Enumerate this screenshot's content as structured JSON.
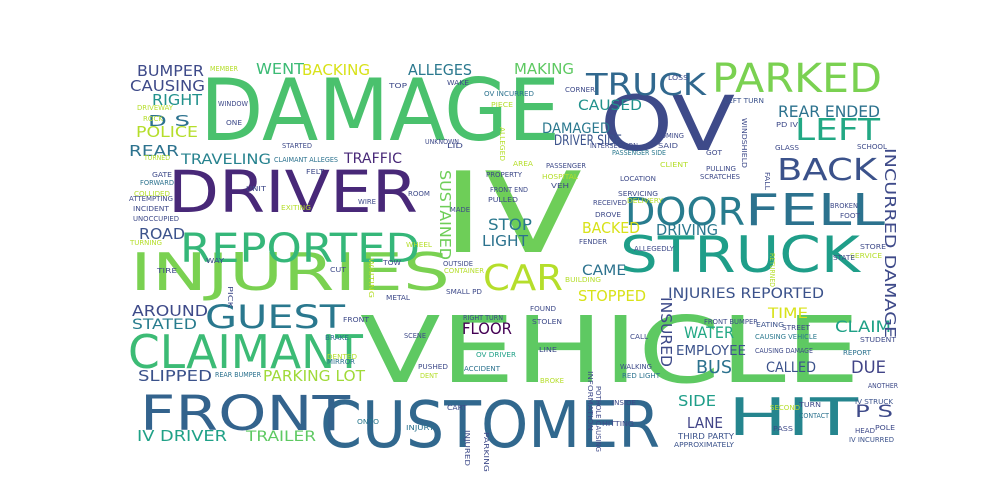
{
  "colors": {
    "background": "#ffffff",
    "palette": [
      "#440154",
      "#46327e",
      "#365c8d",
      "#277f8e",
      "#1fa187",
      "#4ac16d",
      "#a0da39",
      "#fde725"
    ]
  },
  "words": [
    {
      "text": "DAMAGE",
      "color": "#4ac16d",
      "rot": 0
    },
    {
      "text": "VEHICLE",
      "color": "#5ec962",
      "rot": 0
    },
    {
      "text": "IV",
      "color": "#6ece58",
      "rot": 0
    },
    {
      "text": "OV",
      "color": "#3e4a89",
      "rot": 0
    },
    {
      "text": "CUSTOMER",
      "color": "#31688e",
      "rot": 0
    },
    {
      "text": "DRIVER",
      "color": "#482878",
      "rot": 0
    },
    {
      "text": "INJURIES",
      "color": "#7ad151",
      "rot": 0
    },
    {
      "text": "STRUCK",
      "color": "#1f9e89",
      "rot": 0
    },
    {
      "text": "FRONT",
      "color": "#33638d",
      "rot": 0
    },
    {
      "text": "HIT",
      "color": "#25858e",
      "rot": 0
    },
    {
      "text": "CLAIMANT",
      "color": "#3cbb75",
      "rot": 0
    },
    {
      "text": "FELL",
      "color": "#2c728e",
      "rot": 0
    },
    {
      "text": "PARKED",
      "color": "#7ad151",
      "rot": 0
    },
    {
      "text": "REPORTED",
      "color": "#35b779",
      "rot": 0
    },
    {
      "text": "DOOR",
      "color": "#287c8e",
      "rot": 0
    },
    {
      "text": "CAR",
      "color": "#b5de2b",
      "rot": 0
    },
    {
      "text": "BACK",
      "color": "#3b528b",
      "rot": 0
    },
    {
      "text": "LEFT",
      "color": "#22a884",
      "rot": 0
    },
    {
      "text": "TRUCK",
      "color": "#31688e",
      "rot": 0
    },
    {
      "text": "GUEST",
      "color": "#2a788e",
      "rot": 0
    },
    {
      "text": "INJURIES REPORTED",
      "color": "#3b528b",
      "rot": 0
    },
    {
      "text": "REAR ENDED",
      "color": "#2c728e",
      "rot": 0
    },
    {
      "text": "PARKING LOT",
      "color": "#a0da39",
      "rot": 0
    },
    {
      "text": "FLOOR",
      "color": "#440154",
      "rot": 0
    },
    {
      "text": "WATER",
      "color": "#22a884",
      "rot": 0
    },
    {
      "text": "CLAIM",
      "color": "#1fa187",
      "rot": 0
    },
    {
      "text": "BUS",
      "color": "#2c728e",
      "rot": 0
    },
    {
      "text": "DUE",
      "color": "#414487",
      "rot": 0
    },
    {
      "text": "LANE",
      "color": "#414487",
      "rot": 0
    },
    {
      "text": "SIDE",
      "color": "#1f9e89",
      "rot": 0
    },
    {
      "text": "P S",
      "color": "#3e4a89",
      "rot": 0
    },
    {
      "text": "IV DRIVER",
      "color": "#1fa187",
      "rot": 0
    },
    {
      "text": "TRAILER",
      "color": "#5ec962",
      "rot": 0
    },
    {
      "text": "SLIPPED",
      "color": "#3b528b",
      "rot": 0
    },
    {
      "text": "STATED",
      "color": "#287c8e",
      "rot": 0
    },
    {
      "text": "AROUND",
      "color": "#3e4a89",
      "rot": 0
    },
    {
      "text": "ROAD",
      "color": "#3b528b",
      "rot": 0
    },
    {
      "text": "TRAVELING",
      "color": "#26828e",
      "rot": 0
    },
    {
      "text": "REAR",
      "color": "#2c728e",
      "rot": 0
    },
    {
      "text": "POLICE",
      "color": "#b5de2b",
      "rot": 0
    },
    {
      "text": "D S",
      "color": "#2c728e",
      "rot": 0
    },
    {
      "text": "RIGHT",
      "color": "#21918c",
      "rot": 0
    },
    {
      "text": "CAUSING",
      "color": "#3e4a89",
      "rot": 0
    },
    {
      "text": "BUMPER",
      "color": "#3e4a89",
      "rot": 0
    },
    {
      "text": "WENT",
      "color": "#3cbb75",
      "rot": 0
    },
    {
      "text": "BACKING",
      "color": "#d8e219",
      "rot": 0
    },
    {
      "text": "ALLEGES",
      "color": "#2a788e",
      "rot": 0
    },
    {
      "text": "MAKING",
      "color": "#5ec962",
      "rot": 0
    },
    {
      "text": "CAUSED",
      "color": "#21918c",
      "rot": 0
    },
    {
      "text": "DAMAGED",
      "color": "#2a788e",
      "rot": 0
    },
    {
      "text": "DRIVER SIDE",
      "color": "#3b528b",
      "rot": 0
    },
    {
      "text": "TRAFFIC",
      "color": "#482878",
      "rot": 0
    },
    {
      "text": "STOP",
      "color": "#2a788e",
      "rot": 0
    },
    {
      "text": "LIGHT",
      "color": "#2c728e",
      "rot": 0
    },
    {
      "text": "BACKED",
      "color": "#d8e219",
      "rot": 0
    },
    {
      "text": "DRIVING",
      "color": "#2a788e",
      "rot": 0
    },
    {
      "text": "CAME",
      "color": "#2c728e",
      "rot": 0
    },
    {
      "text": "STOPPED",
      "color": "#d8e219",
      "rot": 0
    },
    {
      "text": "TIME",
      "color": "#d8e219",
      "rot": 0
    },
    {
      "text": "INSURED",
      "color": "#3e4a89",
      "rot": 90
    },
    {
      "text": "EMPLOYEE",
      "color": "#3b528b",
      "rot": 0
    },
    {
      "text": "CALLED",
      "color": "#3b528b",
      "rot": 0
    },
    {
      "text": "INCURRED DAMAGE",
      "color": "#3e4a89",
      "rot": 90
    },
    {
      "text": "SUSTAINED",
      "color": "#6ece58",
      "rot": 90
    },
    {
      "text": "THIRD PARTY",
      "color": "#3b528b",
      "rot": 0
    },
    {
      "text": "APPROXIMATELY",
      "color": "#3b528b",
      "rot": 0
    },
    {
      "text": "RIGHT TURN",
      "color": "#3e4a89",
      "rot": 0
    },
    {
      "text": "STOLEN",
      "color": "#3e4a89",
      "rot": 0
    },
    {
      "text": "FOUND",
      "color": "#3e4a89",
      "rot": 0
    },
    {
      "text": "SMALL PD",
      "color": "#3e4a89",
      "rot": 0
    },
    {
      "text": "FRONT END",
      "color": "#3e4a89",
      "rot": 0
    },
    {
      "text": "PULLED",
      "color": "#3e4a89",
      "rot": 0
    },
    {
      "text": "IV INCURRED",
      "color": "#3b528b",
      "rot": 0
    },
    {
      "text": "IV STRUCK",
      "color": "#3b528b",
      "rot": 0
    },
    {
      "text": "CAUSING VEHICLE",
      "color": "#2a788e",
      "rot": 0
    },
    {
      "text": "CAUSING DAMAGE",
      "color": "#3e4a89",
      "rot": 0
    },
    {
      "text": "FRONT BUMPER",
      "color": "#3e4a89",
      "rot": 0
    },
    {
      "text": "OV DRIVER",
      "color": "#1fa187",
      "rot": 0
    },
    {
      "text": "REAR BUMPER",
      "color": "#2c728e",
      "rot": 0
    },
    {
      "text": "CLAIMANT ALLEGES",
      "color": "#2c728e",
      "rot": 0
    },
    {
      "text": "OV INCURRED",
      "color": "#2c728e",
      "rot": 0
    },
    {
      "text": "PASSENGER SIDE",
      "color": "#2a788e",
      "rot": 0
    },
    {
      "text": "LEFT TURN",
      "color": "#3b528b",
      "rot": 0
    },
    {
      "text": "RED LIGHT",
      "color": "#2c728e",
      "rot": 0
    },
    {
      "text": "ACCIDENT",
      "color": "#2c728e",
      "rot": 0
    },
    {
      "text": "PUSHED",
      "color": "#3e4a89",
      "rot": 0
    },
    {
      "text": "INJURY",
      "color": "#2c728e",
      "rot": 0
    },
    {
      "text": "ONTO",
      "color": "#2a788e",
      "rot": 0
    },
    {
      "text": "CART",
      "color": "#3e4a89",
      "rot": 0
    },
    {
      "text": "SCENE",
      "color": "#3e4a89",
      "rot": 0
    },
    {
      "text": "BRAKE",
      "color": "#2c728e",
      "rot": 0
    },
    {
      "text": "MIRROR",
      "color": "#2c728e",
      "rot": 0
    },
    {
      "text": "STREET",
      "color": "#3e4a89",
      "rot": 0
    },
    {
      "text": "EATING",
      "color": "#3b528b",
      "rot": 0
    },
    {
      "text": "STUDENT",
      "color": "#3e4a89",
      "rot": 0
    },
    {
      "text": "REPORT",
      "color": "#2c728e",
      "rot": 0
    },
    {
      "text": "ANOTHER",
      "color": "#3e4a89",
      "rot": 0
    },
    {
      "text": "POLE",
      "color": "#3e4a89",
      "rot": 0
    },
    {
      "text": "HEAD",
      "color": "#3e4a89",
      "rot": 0
    },
    {
      "text": "CONTACT",
      "color": "#2c728e",
      "rot": 0
    },
    {
      "text": "TURN",
      "color": "#3e4a89",
      "rot": 0
    },
    {
      "text": "PASS",
      "color": "#3e4a89",
      "rot": 0
    },
    {
      "text": "STORE",
      "color": "#3e4a89",
      "rot": 0
    },
    {
      "text": "SERVICE",
      "color": "#b5de2b",
      "rot": 0
    },
    {
      "text": "STATE",
      "color": "#3e4a89",
      "rot": 0
    },
    {
      "text": "FOOT",
      "color": "#3e4a89",
      "rot": 0
    },
    {
      "text": "BROKEN",
      "color": "#3e4a89",
      "rot": 0
    },
    {
      "text": "TIRE",
      "color": "#3e4a89",
      "rot": 0
    },
    {
      "text": "TURNING",
      "color": "#b5de2b",
      "rot": 0
    },
    {
      "text": "INCIDENT",
      "color": "#3e4a89",
      "rot": 0
    },
    {
      "text": "ATTEMPTING",
      "color": "#3e4a89",
      "rot": 0
    },
    {
      "text": "COLLIDED",
      "color": "#b5de2b",
      "rot": 0
    },
    {
      "text": "FORWARD",
      "color": "#2c728e",
      "rot": 0
    },
    {
      "text": "GATE",
      "color": "#3e4a89",
      "rot": 0
    },
    {
      "text": "TURNED",
      "color": "#b5de2b",
      "rot": 0
    },
    {
      "text": "ROCK",
      "color": "#b5de2b",
      "rot": 0
    },
    {
      "text": "DRIVEWAY",
      "color": "#b5de2b",
      "rot": 0
    },
    {
      "text": "MEMBER",
      "color": "#b5de2b",
      "rot": 0
    },
    {
      "text": "WINDOW",
      "color": "#3e4a89",
      "rot": 0
    },
    {
      "text": "LOSS",
      "color": "#3e4a89",
      "rot": 0
    },
    {
      "text": "CORNER",
      "color": "#3e4a89",
      "rot": 0
    },
    {
      "text": "WAKE",
      "color": "#3e4a89",
      "rot": 0
    },
    {
      "text": "TOP",
      "color": "#3e4a89",
      "rot": 0
    },
    {
      "text": "PIECE",
      "color": "#b5de2b",
      "rot": 0
    },
    {
      "text": "COMING",
      "color": "#3e4a89",
      "rot": 0
    },
    {
      "text": "SAID",
      "color": "#3e4a89",
      "rot": 0
    },
    {
      "text": "CLIENT",
      "color": "#b5de2b",
      "rot": 0
    },
    {
      "text": "GLASS",
      "color": "#3e4a89",
      "rot": 0
    },
    {
      "text": "SCHOOL",
      "color": "#3e4a89",
      "rot": 0
    },
    {
      "text": "GOT",
      "color": "#3e4a89",
      "rot": 0
    },
    {
      "text": "PULLING",
      "color": "#3e4a89",
      "rot": 0
    },
    {
      "text": "SCRATCHES",
      "color": "#3e4a89",
      "rot": 0
    },
    {
      "text": "LOCATION",
      "color": "#3e4a89",
      "rot": 0
    },
    {
      "text": "SERVICING",
      "color": "#3e4a89",
      "rot": 0
    },
    {
      "text": "DELIVERY",
      "color": "#b5de2b",
      "rot": 0
    },
    {
      "text": "RECEIVED",
      "color": "#3e4a89",
      "rot": 0
    },
    {
      "text": "DROVE",
      "color": "#3e4a89",
      "rot": 0
    },
    {
      "text": "FENDER",
      "color": "#3e4a89",
      "rot": 0
    },
    {
      "text": "ALLEGEDLY",
      "color": "#3e4a89",
      "rot": 0
    },
    {
      "text": "BUILDING",
      "color": "#b5de2b",
      "rot": 0
    },
    {
      "text": "CONTAINER",
      "color": "#b5de2b",
      "rot": 0
    },
    {
      "text": "WAITING",
      "color": "#b5de2b",
      "rot": 90
    },
    {
      "text": "PASSENGER",
      "color": "#3e4a89",
      "rot": 0
    },
    {
      "text": "HOSPITAL",
      "color": "#b5de2b",
      "rot": 0
    },
    {
      "text": "PROPERTY",
      "color": "#3e4a89",
      "rot": 0
    },
    {
      "text": "MADE",
      "color": "#3e4a89",
      "rot": 0
    },
    {
      "text": "EXITING",
      "color": "#b5de2b",
      "rot": 0
    },
    {
      "text": "UNIT",
      "color": "#3e4a89",
      "rot": 0
    },
    {
      "text": "FELT",
      "color": "#3e4a89",
      "rot": 0
    },
    {
      "text": "WIRE",
      "color": "#3e4a89",
      "rot": 0
    },
    {
      "text": "ROOM",
      "color": "#3e4a89",
      "rot": 0
    },
    {
      "text": "STARTED",
      "color": "#3e4a89",
      "rot": 0
    },
    {
      "text": "TOW",
      "color": "#3e4a89",
      "rot": 0
    },
    {
      "text": "WHEEL",
      "color": "#b5de2b",
      "rot": 0
    },
    {
      "text": "CUT",
      "color": "#3e4a89",
      "rot": 0
    },
    {
      "text": "METAL",
      "color": "#3e4a89",
      "rot": 0
    },
    {
      "text": "OUTSIDE",
      "color": "#3e4a89",
      "rot": 0
    },
    {
      "text": "INSIDE",
      "color": "#3e4a89",
      "rot": 0
    },
    {
      "text": "HITTING",
      "color": "#3e4a89",
      "rot": 0
    },
    {
      "text": "PARKING",
      "color": "#3e4a89",
      "rot": 90
    },
    {
      "text": "WAY",
      "color": "#3e4a89",
      "rot": 0
    },
    {
      "text": "VEH",
      "color": "#3e4a89",
      "rot": 0
    },
    {
      "text": "DENTED",
      "color": "#b5de2b",
      "rot": 0
    },
    {
      "text": "LID",
      "color": "#3e4a89",
      "rot": 0
    },
    {
      "text": "UNKNOWN",
      "color": "#3e4a89",
      "rot": 0
    },
    {
      "text": "INFORMATION",
      "color": "#3e4a89",
      "rot": 90
    },
    {
      "text": "POTHOLE CAUSING",
      "color": "#3e4a89",
      "rot": 90
    },
    {
      "text": "LINE",
      "color": "#3e4a89",
      "rot": 0
    },
    {
      "text": "CALL",
      "color": "#3e4a89",
      "rot": 0
    },
    {
      "text": "UNOCCUPIED",
      "color": "#3e4a89",
      "rot": 0
    },
    {
      "text": "PICK",
      "color": "#3e4a89",
      "rot": 90
    },
    {
      "text": "WALKING",
      "color": "#3e4a89",
      "rot": 0
    },
    {
      "text": "INTERSECTION",
      "color": "#3e4a89",
      "rot": 0
    },
    {
      "text": "DENT",
      "color": "#b5de2b",
      "rot": 0
    },
    {
      "text": "FRONT",
      "color": "#3e4a89",
      "rot": 0
    },
    {
      "text": "BROKE",
      "color": "#b5de2b",
      "rot": 0
    },
    {
      "text": "SECOND",
      "color": "#b5de2b",
      "rot": 0
    },
    {
      "text": "AREA",
      "color": "#b5de2b",
      "rot": 0
    },
    {
      "text": "ALLEGED",
      "color": "#b5de2b",
      "rot": 90
    },
    {
      "text": "ONE",
      "color": "#3e4a89",
      "rot": 0
    },
    {
      "text": "WINDSHIELD",
      "color": "#3e4a89",
      "rot": 90
    },
    {
      "text": "INJURED",
      "color": "#3e4a89",
      "rot": 90
    },
    {
      "text": "FALL",
      "color": "#3e4a89",
      "rot": 90
    },
    {
      "text": "PD IV",
      "color": "#3e4a89",
      "rot": 0
    },
    {
      "text": "RETURNED",
      "color": "#b5de2b",
      "rot": 90
    }
  ]
}
